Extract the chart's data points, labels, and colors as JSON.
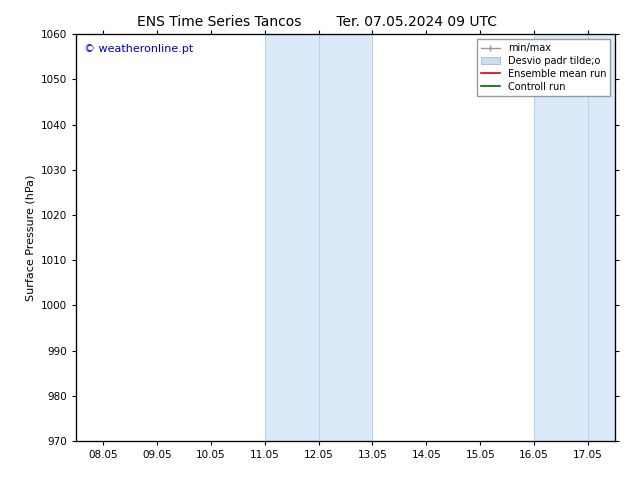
{
  "title_left": "ENS Time Series Tancos",
  "title_right": "Ter. 07.05.2024 09 UTC",
  "ylabel": "Surface Pressure (hPa)",
  "ylim": [
    970,
    1060
  ],
  "yticks": [
    970,
    980,
    990,
    1000,
    1010,
    1020,
    1030,
    1040,
    1050,
    1060
  ],
  "xtick_labels": [
    "08.05",
    "09.05",
    "10.05",
    "11.05",
    "12.05",
    "13.05",
    "14.05",
    "15.05",
    "16.05",
    "17.05"
  ],
  "xtick_positions": [
    0,
    1,
    2,
    3,
    4,
    5,
    6,
    7,
    8,
    9
  ],
  "xlim": [
    -0.5,
    9.5
  ],
  "shaded_regions": [
    {
      "x_start": 3.0,
      "x_end": 5.0,
      "color": "#daeaf8"
    },
    {
      "x_start": 8.0,
      "x_end": 9.5,
      "color": "#daeaf8"
    }
  ],
  "vertical_lines_inner": [
    {
      "x": 4.0,
      "color": "#b8d4ec",
      "lw": 0.8
    },
    {
      "x": 9.0,
      "color": "#b8d4ec",
      "lw": 0.8
    }
  ],
  "vertical_lines_border": [
    {
      "x": 3.0,
      "color": "#b8d4ec",
      "lw": 0.8
    },
    {
      "x": 5.0,
      "color": "#b8d4ec",
      "lw": 0.8
    },
    {
      "x": 8.0,
      "color": "#b8d4ec",
      "lw": 0.8
    }
  ],
  "legend_entries": [
    {
      "label": "min/max",
      "color": "#999999",
      "lw": 1.0,
      "type": "line_with_caps"
    },
    {
      "label": "Desvio padr tilde;o",
      "color": "#c8dff0",
      "lw": 8,
      "type": "band"
    },
    {
      "label": "Ensemble mean run",
      "color": "#dd0000",
      "lw": 1.2,
      "type": "line"
    },
    {
      "label": "Controll run",
      "color": "#006600",
      "lw": 1.2,
      "type": "line"
    }
  ],
  "watermark": "© weatheronline.pt",
  "watermark_color": "#0000bb",
  "watermark_fontsize": 8,
  "bg_color": "#ffffff",
  "title_fontsize": 10,
  "ylabel_fontsize": 8,
  "tick_fontsize": 7.5
}
